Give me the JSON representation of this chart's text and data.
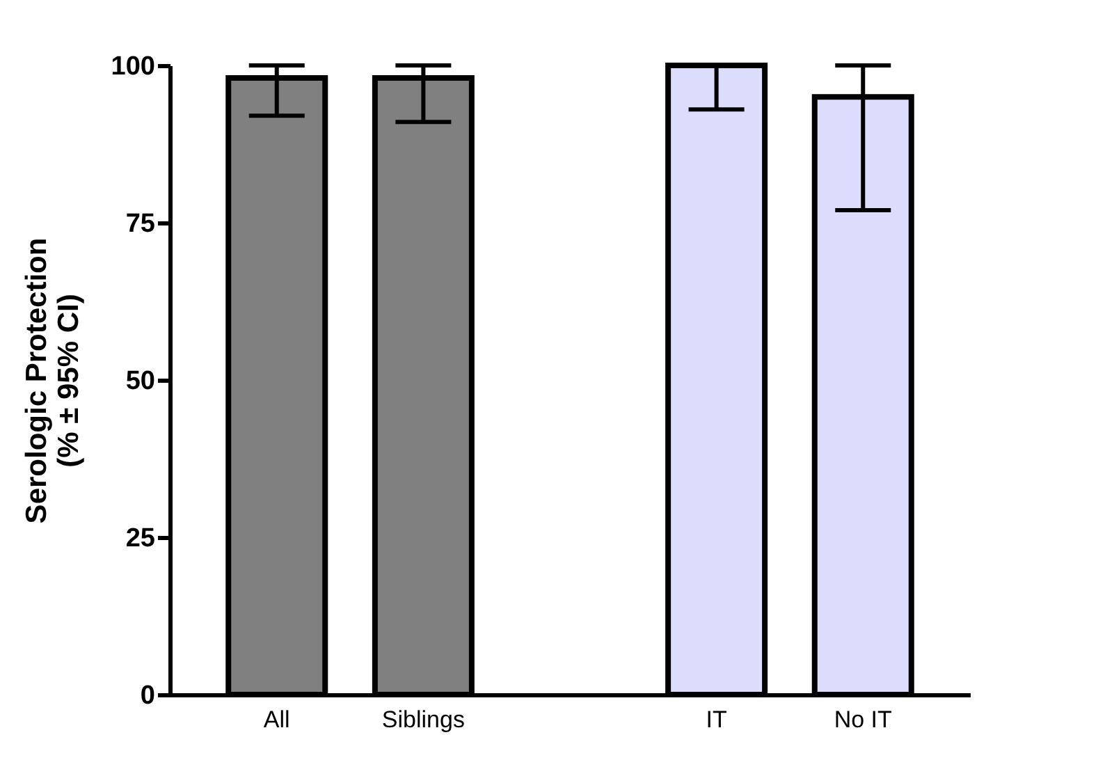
{
  "chart_data": {
    "type": "bar",
    "ylabel": "Serologic Protection\n(% ± 95% CI)",
    "categories": [
      "All",
      "Siblings",
      null,
      "IT",
      "No IT"
    ],
    "values": [
      98,
      98,
      null,
      100,
      95
    ],
    "colors": [
      "#808080",
      "#808080",
      null,
      "#dcdcfc",
      "#dcdcfc"
    ],
    "errors": [
      [
        92,
        100
      ],
      [
        91,
        100
      ],
      null,
      [
        93,
        100
      ],
      [
        77,
        100
      ]
    ],
    "ylim": [
      0,
      100
    ],
    "yticks": [
      0,
      25,
      50,
      75,
      100
    ],
    "grid": false
  }
}
